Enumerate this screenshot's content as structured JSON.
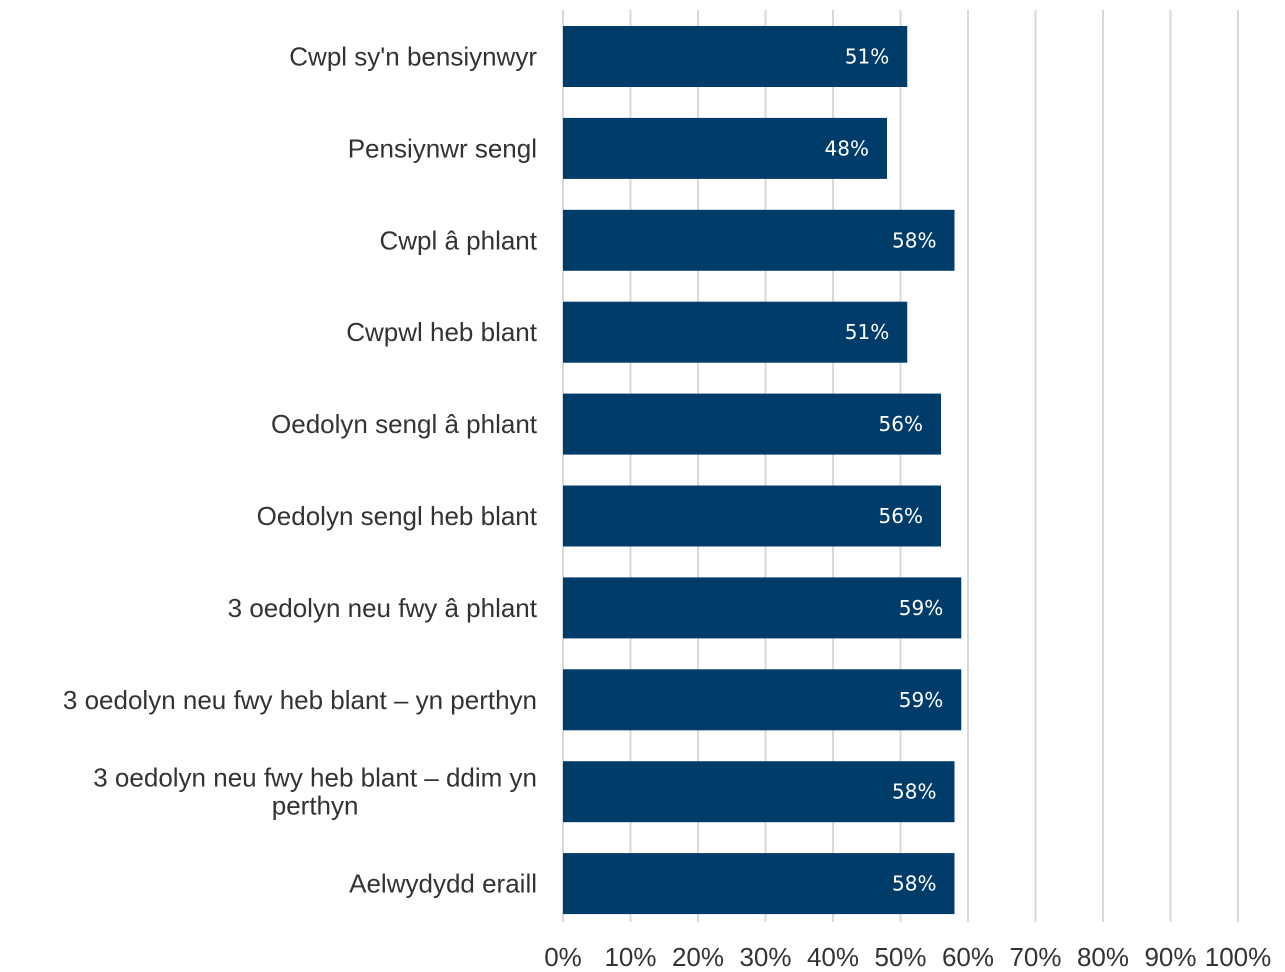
{
  "chart_data": {
    "type": "bar",
    "orientation": "horizontal",
    "title": "",
    "xlabel": "",
    "ylabel": "",
    "categories": [
      "Cwpl sy'n bensiynwyr",
      "Pensiynwr sengl",
      "Cwpl â phlant",
      "Cwpwl heb blant",
      "Oedolyn sengl â phlant",
      "Oedolyn sengl heb blant",
      "3 oedolyn neu fwy â phlant",
      "3 oedolyn neu fwy heb blant – yn perthyn",
      "3 oedolyn neu fwy heb blant – ddim yn perthyn",
      "Aelwydydd eraill"
    ],
    "values": [
      51,
      48,
      58,
      51,
      56,
      56,
      59,
      59,
      58,
      58
    ],
    "data_labels": [
      "51%",
      "48%",
      "58%",
      "51%",
      "56%",
      "56%",
      "59%",
      "59%",
      "58%",
      "58%"
    ],
    "xlim": [
      0,
      100
    ],
    "x_ticks": [
      "0%",
      "10%",
      "20%",
      "30%",
      "40%",
      "50%",
      "60%",
      "70%",
      "80%",
      "90%",
      "100%"
    ],
    "grid": true,
    "legend": "none",
    "bar_color": "#003c69",
    "grid_color": "#d9d9d9",
    "label_color": "#333333"
  }
}
